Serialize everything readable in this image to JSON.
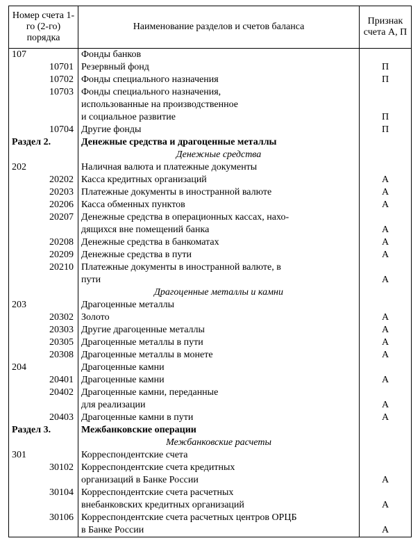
{
  "headers": {
    "num": "Номер счета 1-го (2-го) порядка",
    "name": "Наименование разделов и счетов баланса",
    "sign": "Признак счета А, П"
  },
  "rows": [
    {
      "num": "107",
      "name": "Фонды банков",
      "sign": "",
      "numClass": "primary",
      "first": true
    },
    {
      "num": "10701",
      "name": "Резервный фонд",
      "sign": "П"
    },
    {
      "num": "10702",
      "name": "Фонды специального назначения",
      "sign": "П"
    },
    {
      "num": "10703",
      "name": "Фонды специального назначения,",
      "sign": ""
    },
    {
      "num": "",
      "name": "использованные на производственное",
      "sign": ""
    },
    {
      "num": "",
      "name": "и социальное развитие",
      "sign": "П"
    },
    {
      "num": "10704",
      "name": "Другие фонды",
      "sign": "П"
    },
    {
      "num": "Раздел 2.",
      "name": "Денежные средства и драгоценные металлы",
      "sign": "",
      "numClass": "primary bold",
      "nameClass": "bold"
    },
    {
      "num": "",
      "name": "Денежные средства",
      "sign": "",
      "nameClass": "italic center"
    },
    {
      "num": "202",
      "name": "Наличная валюта и платежные документы",
      "sign": "",
      "numClass": "primary"
    },
    {
      "num": "20202",
      "name": "Касса кредитных организаций",
      "sign": "А"
    },
    {
      "num": "20203",
      "name": "Платежные документы в иностранной валюте",
      "sign": "А"
    },
    {
      "num": "20206",
      "name": "Касса обменных пунктов",
      "sign": "А"
    },
    {
      "num": "20207",
      "name": "Денежные средства в операционных кассах, нахо-",
      "sign": ""
    },
    {
      "num": "",
      "name": "дящихся вне помещений банка",
      "sign": "А"
    },
    {
      "num": "20208",
      "name": "Денежные средства в банкоматах",
      "sign": "А"
    },
    {
      "num": "20209",
      "name": "Денежные средства в пути",
      "sign": "А"
    },
    {
      "num": "20210",
      "name": "Платежные документы в иностранной валюте, в",
      "sign": ""
    },
    {
      "num": "",
      "name": "пути",
      "sign": "А"
    },
    {
      "num": "",
      "name": "Драгоценные металлы и камни",
      "sign": "",
      "nameClass": "italic center"
    },
    {
      "num": "203",
      "name": "Драгоценные металлы",
      "sign": "",
      "numClass": "primary"
    },
    {
      "num": "20302",
      "name": "Золото",
      "sign": "А"
    },
    {
      "num": "20303",
      "name": "Другие драгоценные металлы",
      "sign": "А"
    },
    {
      "num": "20305",
      "name": "Драгоценные металлы в пути",
      "sign": "А"
    },
    {
      "num": "20308",
      "name": "Драгоценные металлы в монете",
      "sign": "А"
    },
    {
      "num": "204",
      "name": "Драгоценные камни",
      "sign": "",
      "numClass": "primary"
    },
    {
      "num": "20401",
      "name": "Драгоценные камни",
      "sign": "А"
    },
    {
      "num": "20402",
      "name": "Драгоценные камни, переданные",
      "sign": ""
    },
    {
      "num": "",
      "name": "для реализации",
      "sign": "А"
    },
    {
      "num": "20403",
      "name": "Драгоценные камни в пути",
      "sign": "А"
    },
    {
      "num": "Раздел 3.",
      "name": "Межбанковские операции",
      "sign": "",
      "numClass": "primary bold",
      "nameClass": "bold"
    },
    {
      "num": "",
      "name": "Межбанковские расчеты",
      "sign": "",
      "nameClass": "italic center"
    },
    {
      "num": "301",
      "name": "Корреспондентские счета",
      "sign": "",
      "numClass": "primary"
    },
    {
      "num": "30102",
      "name": "Корреспондентские счета кредитных",
      "sign": ""
    },
    {
      "num": "",
      "name": "организаций в Банке России",
      "sign": "А"
    },
    {
      "num": "30104",
      "name": "Корреспондентские счета расчетных",
      "sign": ""
    },
    {
      "num": "",
      "name": "внебанковских кредитных организаций",
      "sign": "А"
    },
    {
      "num": "30106",
      "name": "Корреспондентские счета расчетных центров ОРЦБ",
      "sign": ""
    },
    {
      "num": "",
      "name": "в Банке России",
      "sign": "А",
      "last": true
    }
  ]
}
